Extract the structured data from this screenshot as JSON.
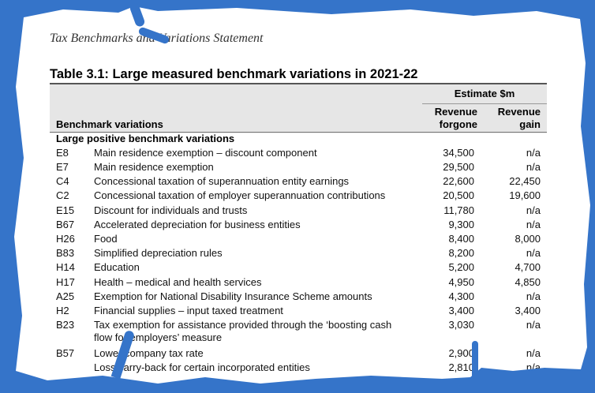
{
  "header": "Tax Benchmarks and Variations Statement",
  "title": "Table 3.1: Large measured benchmark variations in 2021-22",
  "columns": {
    "group": "Estimate $m",
    "col1": "Revenue forgone",
    "col1a": "Revenue",
    "col1b": "forgone",
    "col2a": "Revenue",
    "col2b": "gain",
    "label": "Benchmark variations"
  },
  "section": "Large positive benchmark variations",
  "rows": [
    {
      "code": "E8",
      "desc": "Main residence exemption – discount component",
      "forgone": "34,500",
      "gain": "n/a"
    },
    {
      "code": "E7",
      "desc": "Main residence exemption",
      "forgone": "29,500",
      "gain": "n/a"
    },
    {
      "code": "C4",
      "desc": "Concessional taxation of superannuation entity earnings",
      "forgone": "22,600",
      "gain": "22,450"
    },
    {
      "code": "C2",
      "desc": "Concessional taxation of employer superannuation contributions",
      "forgone": "20,500",
      "gain": "19,600"
    },
    {
      "code": "E15",
      "desc": "Discount for individuals and trusts",
      "forgone": "11,780",
      "gain": "n/a"
    },
    {
      "code": "B67",
      "desc": "Accelerated depreciation for business entities",
      "forgone": "9,300",
      "gain": "n/a"
    },
    {
      "code": "H26",
      "desc": "Food",
      "forgone": "8,400",
      "gain": "8,000"
    },
    {
      "code": "B83",
      "desc": "Simplified depreciation rules",
      "forgone": "8,200",
      "gain": "n/a"
    },
    {
      "code": "H14",
      "desc": "Education",
      "forgone": "5,200",
      "gain": "4,700"
    },
    {
      "code": "H17",
      "desc": "Health – medical and health services",
      "forgone": "4,950",
      "gain": "4,850"
    },
    {
      "code": "A25",
      "desc": "Exemption for National Disability Insurance Scheme amounts",
      "forgone": "4,300",
      "gain": "n/a"
    },
    {
      "code": "H2",
      "desc": "Financial supplies – input taxed treatment",
      "forgone": "3,400",
      "gain": "3,400"
    },
    {
      "code": "B23",
      "desc": "Tax exemption for assistance provided through the ‘boosting cash flow for employers’ measure",
      "forgone": "3,030",
      "gain": "n/a"
    },
    {
      "code": "B57",
      "desc": "Lower company tax rate",
      "forgone": "2,900",
      "gain": "n/a"
    },
    {
      "code": "",
      "desc": "Loss carry-back for certain incorporated entities",
      "forgone": "2,810",
      "gain": "n/a"
    }
  ]
}
